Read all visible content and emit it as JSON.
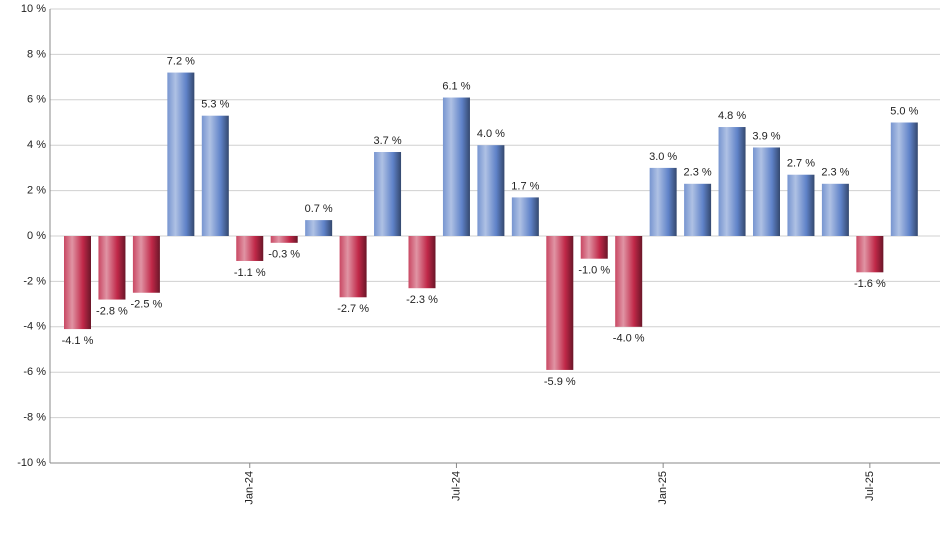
{
  "chart_data": {
    "type": "bar",
    "categories": [
      null,
      null,
      null,
      null,
      null,
      "Jan-24",
      null,
      null,
      null,
      null,
      null,
      "Jul-24",
      null,
      null,
      null,
      null,
      null,
      "Jan-25",
      null,
      null,
      null,
      null,
      null,
      "Jul-25",
      null
    ],
    "values": [
      -4.1,
      -2.8,
      -2.5,
      7.2,
      5.3,
      -1.1,
      -0.3,
      0.7,
      -2.7,
      3.7,
      -2.3,
      6.1,
      4.0,
      1.7,
      -5.9,
      -1.0,
      -4.0,
      3.0,
      2.3,
      4.8,
      3.9,
      2.7,
      2.3,
      -1.6,
      5.0
    ],
    "value_labels": [
      "-4.1 %",
      "-2.8 %",
      "-2.5 %",
      "7.2 %",
      "5.3 %",
      "-1.1 %",
      "-0.3 %",
      "0.7 %",
      "-2.7 %",
      "3.7 %",
      "-2.3 %",
      "6.1 %",
      "4.0 %",
      "1.7 %",
      "-5.9 %",
      "-1.0 %",
      "-4.0 %",
      "3.0 %",
      "2.3 %",
      "4.8 %",
      "3.9 %",
      "2.7 %",
      "2.3 %",
      "-1.6 %",
      "5.0 %"
    ],
    "positive_color": "#5f82c8",
    "negative_color": "#c02848",
    "ylim": [
      -10,
      10
    ],
    "yticks": [
      {
        "value": -10,
        "label": "-10 %"
      },
      {
        "value": -8,
        "label": "-8 %"
      },
      {
        "value": -6,
        "label": "-6 %"
      },
      {
        "value": -4,
        "label": "-4 %"
      },
      {
        "value": -2,
        "label": "-2 %"
      },
      {
        "value": 0,
        "label": "0 %"
      },
      {
        "value": 2,
        "label": "2 %"
      },
      {
        "value": 4,
        "label": "4 %"
      },
      {
        "value": 6,
        "label": "6 %"
      },
      {
        "value": 8,
        "label": "8 %"
      },
      {
        "value": 10,
        "label": "10 %"
      }
    ],
    "grid": true
  }
}
